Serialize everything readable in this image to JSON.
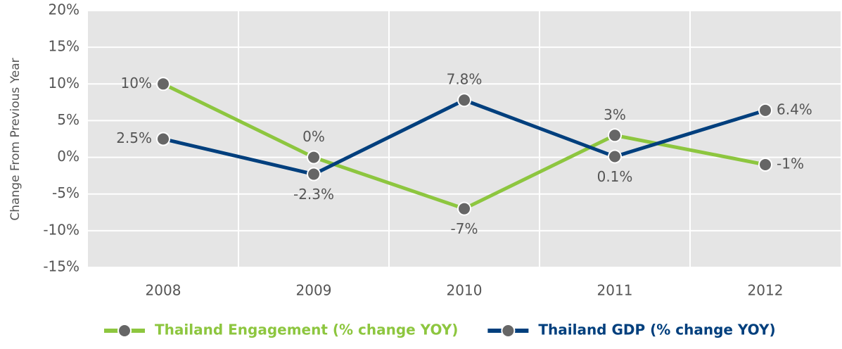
{
  "chart_data": {
    "type": "line",
    "y_axis_label": "Change From Previous Year",
    "categories": [
      "2008",
      "2009",
      "2010",
      "2011",
      "2012"
    ],
    "series": [
      {
        "name": "Thailand Engagement (% change YOY)",
        "color": "#8dc63f",
        "values": [
          10,
          0,
          -7,
          3,
          -1
        ],
        "value_labels": [
          "10%",
          "0%",
          "-7%",
          "3%",
          "-1%"
        ]
      },
      {
        "name": "Thailand GDP (% change YOY)",
        "color": "#003f7d",
        "values": [
          2.5,
          -2.3,
          7.8,
          0.1,
          6.4
        ],
        "value_labels": [
          "2.5%",
          "-2.3%",
          "7.8%",
          "0.1%",
          "6.4%"
        ]
      }
    ],
    "marker_color": "#666666",
    "ylim": [
      -15,
      20
    ],
    "yticks": [
      {
        "value": -15,
        "label": "-15%"
      },
      {
        "value": -10,
        "label": "-10%"
      },
      {
        "value": -5,
        "label": "-5%"
      },
      {
        "value": 0,
        "label": "0%"
      },
      {
        "value": 5,
        "label": "5%"
      },
      {
        "value": 10,
        "label": "10%"
      },
      {
        "value": 15,
        "label": "15%"
      },
      {
        "value": 20,
        "label": "20%"
      }
    ],
    "grid": true,
    "legend": "bottom"
  }
}
